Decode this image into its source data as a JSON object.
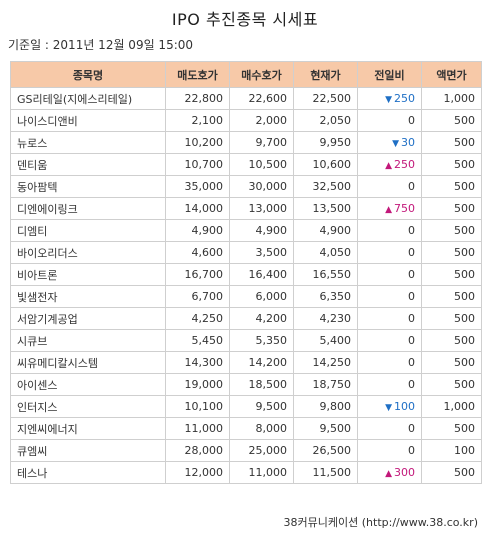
{
  "title": "IPO 추진종목 시세표",
  "base_date": "기준일 : 2011년 12월 09일 15:00",
  "columns": [
    "종목명",
    "매도호가",
    "매수호가",
    "현재가",
    "전일비",
    "액면가"
  ],
  "rows": [
    {
      "name": "GS리테일(지에스리테일)",
      "ask": "22,800",
      "bid": "22,600",
      "price": "22,500",
      "direction": "down",
      "change": "250",
      "par": "1,000"
    },
    {
      "name": "나이스디앤비",
      "ask": "2,100",
      "bid": "2,000",
      "price": "2,050",
      "direction": "none",
      "change": "0",
      "par": "500"
    },
    {
      "name": "뉴로스",
      "ask": "10,200",
      "bid": "9,700",
      "price": "9,950",
      "direction": "down",
      "change": "30",
      "par": "500"
    },
    {
      "name": "덴티움",
      "ask": "10,700",
      "bid": "10,500",
      "price": "10,600",
      "direction": "up",
      "change": "250",
      "par": "500"
    },
    {
      "name": "동아팜텍",
      "ask": "35,000",
      "bid": "30,000",
      "price": "32,500",
      "direction": "none",
      "change": "0",
      "par": "500"
    },
    {
      "name": "디엔에이링크",
      "ask": "14,000",
      "bid": "13,000",
      "price": "13,500",
      "direction": "up",
      "change": "750",
      "par": "500"
    },
    {
      "name": "디엠티",
      "ask": "4,900",
      "bid": "4,900",
      "price": "4,900",
      "direction": "none",
      "change": "0",
      "par": "500"
    },
    {
      "name": "바이오리더스",
      "ask": "4,600",
      "bid": "3,500",
      "price": "4,050",
      "direction": "none",
      "change": "0",
      "par": "500"
    },
    {
      "name": "비아트론",
      "ask": "16,700",
      "bid": "16,400",
      "price": "16,550",
      "direction": "none",
      "change": "0",
      "par": "500"
    },
    {
      "name": "빛샘전자",
      "ask": "6,700",
      "bid": "6,000",
      "price": "6,350",
      "direction": "none",
      "change": "0",
      "par": "500"
    },
    {
      "name": "서암기계공업",
      "ask": "4,250",
      "bid": "4,200",
      "price": "4,230",
      "direction": "none",
      "change": "0",
      "par": "500"
    },
    {
      "name": "시큐브",
      "ask": "5,450",
      "bid": "5,350",
      "price": "5,400",
      "direction": "none",
      "change": "0",
      "par": "500"
    },
    {
      "name": "씨유메디칼시스템",
      "ask": "14,300",
      "bid": "14,200",
      "price": "14,250",
      "direction": "none",
      "change": "0",
      "par": "500"
    },
    {
      "name": "아이센스",
      "ask": "19,000",
      "bid": "18,500",
      "price": "18,750",
      "direction": "none",
      "change": "0",
      "par": "500"
    },
    {
      "name": "인터지스",
      "ask": "10,100",
      "bid": "9,500",
      "price": "9,800",
      "direction": "down",
      "change": "100",
      "par": "1,000"
    },
    {
      "name": "지엔씨에너지",
      "ask": "11,000",
      "bid": "8,000",
      "price": "9,500",
      "direction": "none",
      "change": "0",
      "par": "500"
    },
    {
      "name": "큐엠씨",
      "ask": "28,000",
      "bid": "25,000",
      "price": "26,500",
      "direction": "none",
      "change": "0",
      "par": "100"
    },
    {
      "name": "테스나",
      "ask": "12,000",
      "bid": "11,000",
      "price": "11,500",
      "direction": "up",
      "change": "300",
      "par": "500"
    }
  ],
  "arrow_glyphs": {
    "up": "▲",
    "down": "▼"
  },
  "colors": {
    "header_bg": "#f7c9a8",
    "up": "#c2187a",
    "down": "#1f6fc5"
  },
  "footer": "38커뮤니케이션 (http://www.38.co.kr)"
}
